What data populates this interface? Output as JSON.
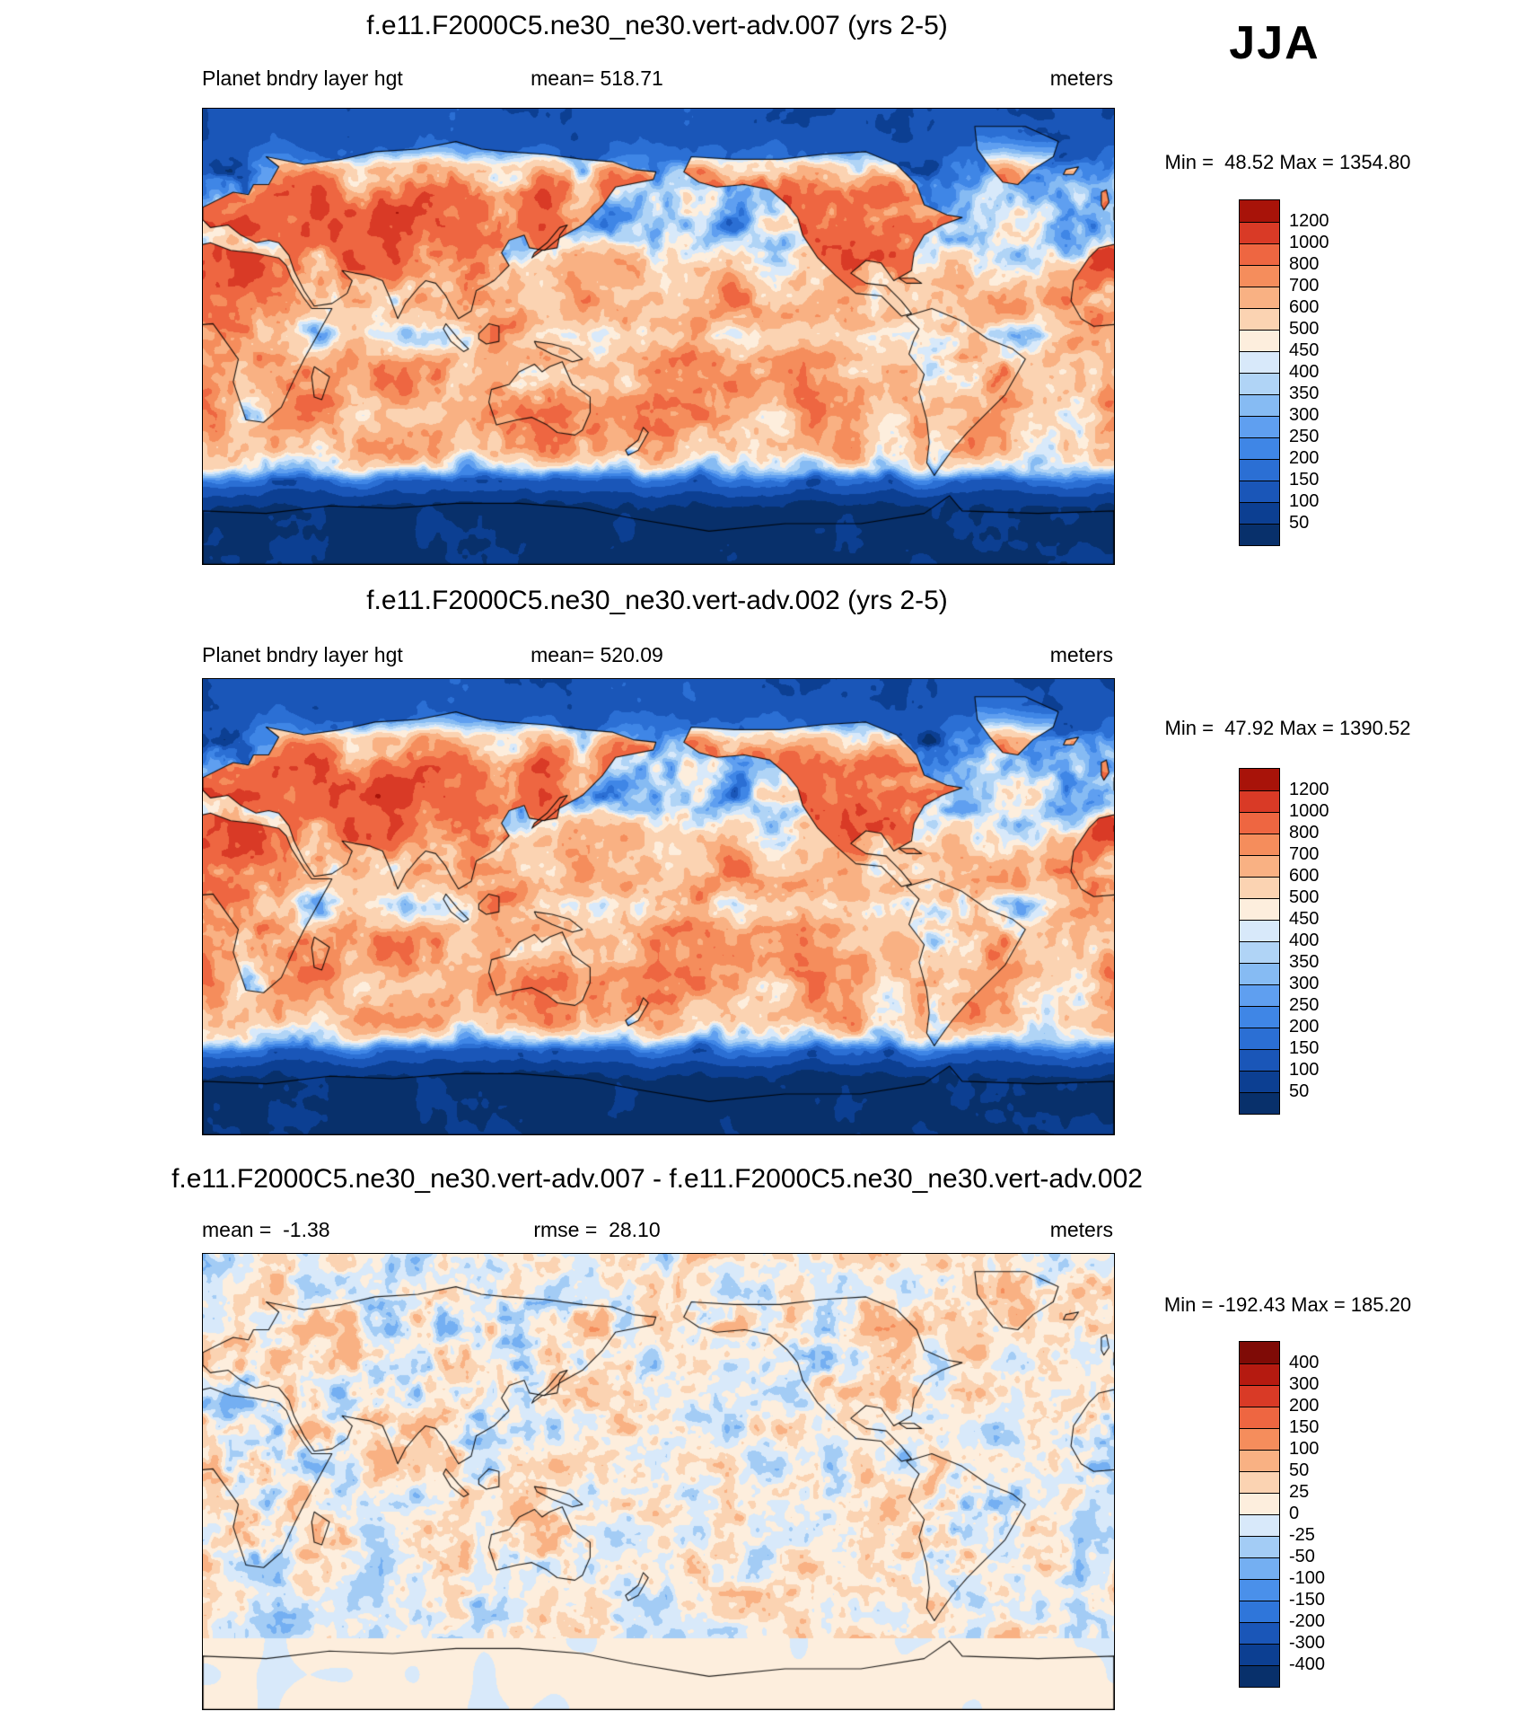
{
  "season_label": "JJA",
  "panels": [
    {
      "title": "f.e11.F2000C5.ne30_ne30.vert-adv.007 (yrs 2-5)",
      "field_label": "Planet bndry layer hgt",
      "mean_label": "mean= 518.71",
      "units_label": "meters",
      "minmax_label": "Min =  48.52 Max = 1354.80",
      "colorbar_labels": [
        "1200",
        "1000",
        "800",
        "700",
        "600",
        "500",
        "450",
        "400",
        "350",
        "300",
        "250",
        "200",
        "150",
        "100",
        "50"
      ]
    },
    {
      "title": "f.e11.F2000C5.ne30_ne30.vert-adv.002 (yrs 2-5)",
      "field_label": "Planet bndry layer hgt",
      "mean_label": "mean= 520.09",
      "units_label": "meters",
      "minmax_label": "Min =  47.92 Max = 1390.52",
      "colorbar_labels": [
        "1200",
        "1000",
        "800",
        "700",
        "600",
        "500",
        "450",
        "400",
        "350",
        "300",
        "250",
        "200",
        "150",
        "100",
        "50"
      ]
    },
    {
      "title": "f.e11.F2000C5.ne30_ne30.vert-adv.007 - f.e11.F2000C5.ne30_ne30.vert-adv.002",
      "mean_label": "mean =  -1.38",
      "rmse_label": "rmse =  28.10",
      "units_label": "meters",
      "minmax_label": "Min = -192.43 Max = 185.20",
      "colorbar_labels": [
        "400",
        "300",
        "200",
        "150",
        "100",
        "50",
        "25",
        "0",
        "-25",
        "-50",
        "-100",
        "-150",
        "-200",
        "-300",
        "-400"
      ]
    }
  ],
  "chart_data": {
    "type": "heatmap",
    "subtype": "global lat-lon filled-contour model diagnostic maps",
    "variable": "Planet bndry layer hgt",
    "units": "meters",
    "season": "JJA",
    "map_extent": {
      "lon": [
        0,
        360
      ],
      "lat": [
        -90,
        90
      ]
    },
    "panels": [
      {
        "name": "f.e11.F2000C5.ne30_ne30.vert-adv.007 (yrs 2-5)",
        "mean": 518.71,
        "min": 48.52,
        "max": 1354.8,
        "contour_levels": [
          50,
          100,
          150,
          200,
          250,
          300,
          350,
          400,
          450,
          500,
          600,
          700,
          800,
          1000,
          1200
        ]
      },
      {
        "name": "f.e11.F2000C5.ne30_ne30.vert-adv.002 (yrs 2-5)",
        "mean": 520.09,
        "min": 47.92,
        "max": 1390.52,
        "contour_levels": [
          50,
          100,
          150,
          200,
          250,
          300,
          350,
          400,
          450,
          500,
          600,
          700,
          800,
          1000,
          1200
        ]
      },
      {
        "name": "difference (vert-adv.007 minus vert-adv.002)",
        "mean": -1.38,
        "rmse": 28.1,
        "min": -192.43,
        "max": 185.2,
        "contour_levels": [
          -400,
          -300,
          -200,
          -150,
          -100,
          -50,
          -25,
          0,
          25,
          50,
          100,
          150,
          200,
          300,
          400
        ]
      }
    ],
    "palette_abs_low_to_high": [
      "#08306b",
      "#0c3f92",
      "#1a56b8",
      "#2b6fd4",
      "#3f86e6",
      "#5f9ff0",
      "#86bbf3",
      "#b0d4f6",
      "#d8e9fa",
      "#fdeedd",
      "#fbd3b2",
      "#f9b183",
      "#f58d5c",
      "#ee6641",
      "#d93a26",
      "#a81309"
    ],
    "palette_diff_low_to_high": [
      "#08306b",
      "#0c3f92",
      "#1a56b8",
      "#2f76da",
      "#4a90ea",
      "#74aff2",
      "#a3ccf5",
      "#d8e9fa",
      "#fdeedd",
      "#fbd3b2",
      "#f9b183",
      "#f58d5c",
      "#ee6641",
      "#d93a26",
      "#b51a10",
      "#7f0b06"
    ]
  }
}
